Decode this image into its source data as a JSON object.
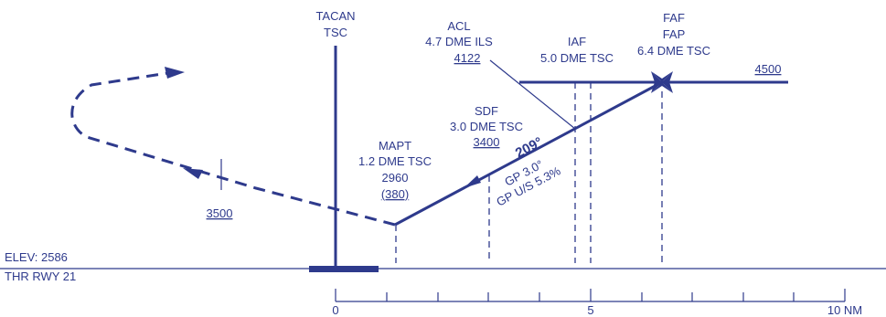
{
  "nav_aid": {
    "line1": "TACAN",
    "line2": "TSC"
  },
  "acl": {
    "line1": "ACL",
    "line2": "4.7 DME ILS",
    "altitude": "4122"
  },
  "iaf": {
    "line1": "IAF",
    "line2": "5.0 DME TSC"
  },
  "faf": {
    "line1": "FAF",
    "line2": "FAP",
    "line3": "6.4 DME TSC"
  },
  "sdf": {
    "line1": "SDF",
    "line2": "3.0 DME TSC",
    "altitude": "3400"
  },
  "mapt": {
    "line1": "MAPT",
    "line2": "1.2 DME TSC",
    "altitude": "2960",
    "height": "(380)"
  },
  "course": "209°",
  "glidepath": {
    "angle": "GP 3.0°",
    "gradient": "GP U/S 5.3%"
  },
  "altitudes": {
    "initial": "4500",
    "missed": "3500"
  },
  "elevation": "ELEV: 2586",
  "threshold": "THR RWY 21",
  "scale": {
    "zero": "0",
    "five": "5",
    "ten": "10 NM"
  },
  "colors": {
    "ink": "#2e3a8c"
  }
}
